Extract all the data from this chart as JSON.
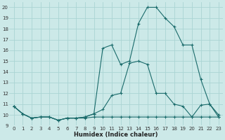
{
  "xlabel": "Humidex (Indice chaleur)",
  "bg_color": "#cce9e8",
  "grid_color": "#aad4d3",
  "line_color": "#1a6b6b",
  "xlim": [
    -0.5,
    23.5
  ],
  "ylim": [
    9,
    20.5
  ],
  "x_ticks": [
    0,
    1,
    2,
    3,
    4,
    5,
    6,
    7,
    8,
    9,
    10,
    11,
    12,
    13,
    14,
    15,
    16,
    17,
    18,
    19,
    20,
    21,
    22,
    23
  ],
  "y_ticks": [
    9,
    10,
    11,
    12,
    13,
    14,
    15,
    16,
    17,
    18,
    19,
    20
  ],
  "line_upper_x": [
    0,
    1,
    2,
    3,
    4,
    5,
    6,
    7,
    8,
    9,
    10,
    11,
    12,
    13,
    14,
    15,
    16,
    17,
    18,
    19,
    20,
    21,
    22,
    23
  ],
  "line_upper_y": [
    10.8,
    10.1,
    9.7,
    9.8,
    9.8,
    9.5,
    9.7,
    9.7,
    9.8,
    10.1,
    16.2,
    16.5,
    14.7,
    15.0,
    18.5,
    20.0,
    20.0,
    19.0,
    18.2,
    16.5,
    16.5,
    13.3,
    11.0,
    9.8
  ],
  "line_mid_x": [
    0,
    1,
    2,
    3,
    4,
    5,
    6,
    7,
    8,
    9,
    10,
    11,
    12,
    13,
    14,
    15,
    16,
    17,
    18,
    19,
    20,
    21,
    22,
    23
  ],
  "line_mid_y": [
    10.8,
    10.1,
    9.7,
    9.8,
    9.8,
    9.5,
    9.7,
    9.7,
    9.8,
    10.1,
    10.5,
    11.8,
    12.0,
    14.8,
    15.0,
    14.7,
    12.0,
    12.0,
    11.0,
    10.8,
    9.8,
    10.9,
    11.0,
    10.0
  ],
  "line_flat_x": [
    0,
    1,
    2,
    3,
    4,
    5,
    6,
    7,
    8,
    9,
    10,
    11,
    12,
    13,
    14,
    15,
    16,
    17,
    18,
    19,
    20,
    21,
    22,
    23
  ],
  "line_flat_y": [
    10.8,
    10.1,
    9.7,
    9.8,
    9.8,
    9.5,
    9.7,
    9.7,
    9.7,
    9.8,
    9.8,
    9.8,
    9.8,
    9.8,
    9.8,
    9.8,
    9.8,
    9.8,
    9.8,
    9.8,
    9.8,
    9.8,
    9.8,
    9.8
  ]
}
